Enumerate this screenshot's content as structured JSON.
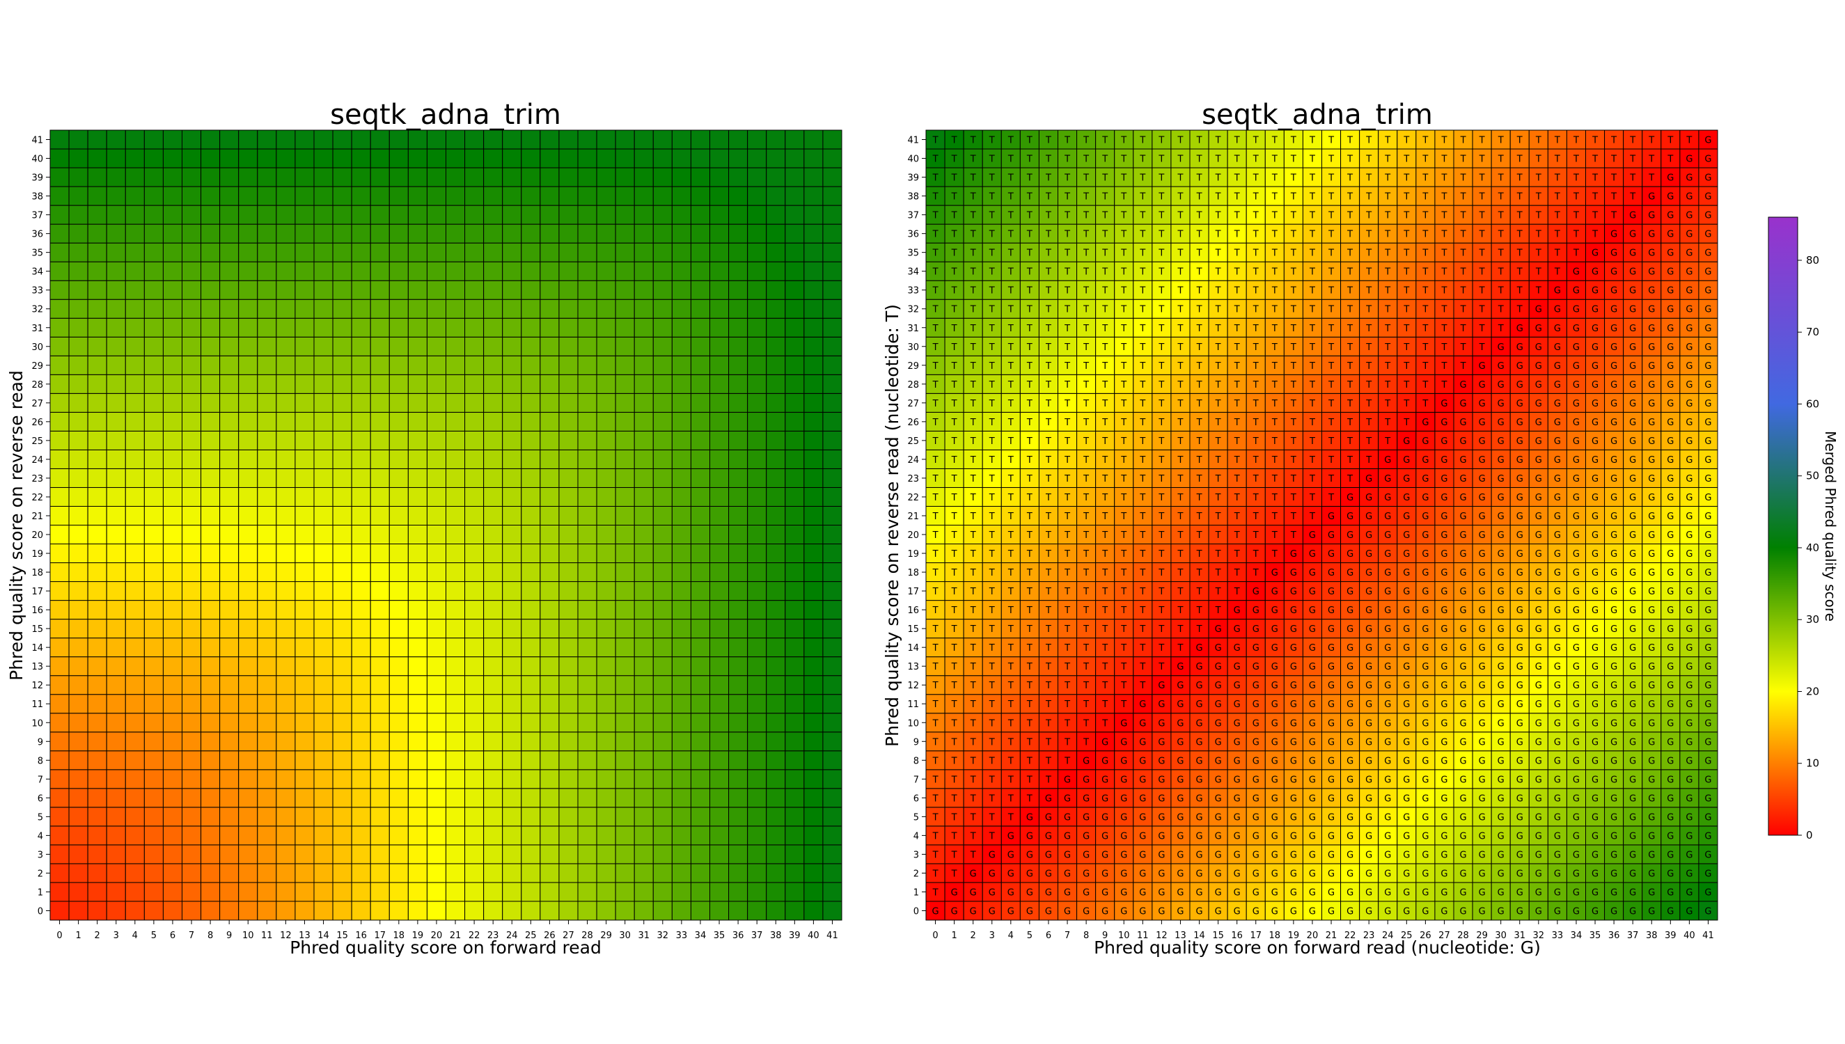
{
  "chart_data": [
    {
      "type": "heatmap",
      "title": "seqtk_adna_trim",
      "xlabel": "Phred quality score on forward read",
      "ylabel": "Phred quality score on reverse read",
      "x_range": [
        0,
        41
      ],
      "y_range": [
        0,
        41
      ],
      "cell_labels": false,
      "value_rule": "merged quality = 10*log10(10^(qf/10) + 10^(qr/10)), capped at 41 (same nucleotide on both reads)",
      "grid": true
    },
    {
      "type": "heatmap",
      "title": "seqtk_adna_trim",
      "xlabel": "Phred quality score on forward read (nucleotide: G)",
      "ylabel": "Phred quality score on reverse read (nucleotide: T)",
      "x_range": [
        0,
        41
      ],
      "y_range": [
        0,
        41
      ],
      "cell_labels": true,
      "cell_label_rule": "letter = T when reverse score > forward score, otherwise G",
      "nucleotide_forward": "G",
      "nucleotide_reverse": "T",
      "value_rule": "merged quality = |qf - qr| (winning nucleotide keeps the difference)",
      "grid": true
    }
  ],
  "colorbar": {
    "label": "Merged Phred quality score",
    "min": 0,
    "max": 86,
    "ticks": [
      0,
      10,
      20,
      30,
      40,
      50,
      60,
      70,
      80
    ],
    "stops": [
      {
        "value": 0,
        "color": "#ff0000"
      },
      {
        "value": 20,
        "color": "#ffff00"
      },
      {
        "value": 40,
        "color": "#008000"
      },
      {
        "value": 60,
        "color": "#4169e1"
      },
      {
        "value": 86,
        "color": "#9932cc"
      }
    ]
  }
}
